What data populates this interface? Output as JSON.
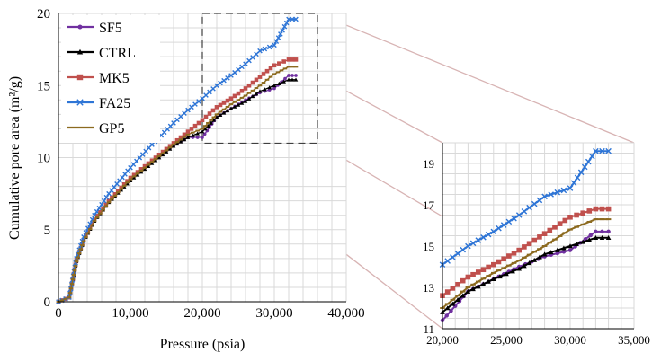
{
  "chart_data": [
    {
      "type": "line",
      "xlabel": "Pressure (psia)",
      "ylabel": "Cumulative pore area (m²/g)",
      "xlim": [
        0,
        40000
      ],
      "ylim": [
        0,
        20
      ],
      "x_ticks": [
        0,
        10000,
        20000,
        30000,
        40000
      ],
      "x_tick_labels": [
        "0",
        "10,000",
        "20,000",
        "30,000",
        "40,000"
      ],
      "y_ticks": [
        0,
        5,
        10,
        15,
        20
      ],
      "y_tick_labels": [
        "0",
        "5",
        "10",
        "15",
        "20"
      ],
      "grid": true,
      "legend_position": "top-left",
      "zoom_box": {
        "x": [
          20000,
          36000
        ],
        "y": [
          11,
          20
        ]
      },
      "series": [
        {
          "name": "SF5",
          "color": "#7030A0",
          "marker": "circle",
          "x": [
            0,
            1500,
            2500,
            3500,
            5000,
            7000,
            10000,
            13000,
            16000,
            18000,
            20000,
            22000,
            24000,
            26000,
            28000,
            30000,
            32000,
            33000
          ],
          "y": [
            0,
            0.3,
            2.8,
            4.2,
            5.6,
            6.9,
            8.5,
            9.7,
            10.8,
            11.4,
            11.4,
            12.8,
            13.4,
            14.0,
            14.5,
            14.8,
            15.7,
            15.7
          ]
        },
        {
          "name": "CTRL",
          "color": "#000000",
          "marker": "triangle",
          "x": [
            0,
            1500,
            2500,
            3500,
            5000,
            7000,
            10000,
            13000,
            16000,
            18000,
            20000,
            22000,
            24000,
            26000,
            28000,
            30000,
            32000,
            33000
          ],
          "y": [
            0,
            0.3,
            2.8,
            4.2,
            5.6,
            6.9,
            8.4,
            9.6,
            10.8,
            11.4,
            11.8,
            12.8,
            13.4,
            13.9,
            14.6,
            15.0,
            15.4,
            15.4
          ]
        },
        {
          "name": "MK5",
          "color": "#C0504D",
          "marker": "square",
          "x": [
            0,
            1500,
            2500,
            3500,
            5000,
            7000,
            10000,
            13000,
            16000,
            18000,
            20000,
            22000,
            24000,
            26000,
            28000,
            30000,
            32000,
            33000
          ],
          "y": [
            0,
            0.3,
            2.9,
            4.3,
            5.7,
            7.0,
            8.6,
            9.8,
            11.0,
            11.8,
            12.6,
            13.5,
            14.1,
            14.8,
            15.6,
            16.4,
            16.8,
            16.8
          ]
        },
        {
          "name": "FA25",
          "color": "#2E75D6",
          "marker": "x",
          "x": [
            0,
            1500,
            2500,
            3500,
            5000,
            7000,
            10000,
            13000,
            16000,
            18000,
            20000,
            22000,
            24000,
            26000,
            28000,
            30000,
            32000,
            33000
          ],
          "y": [
            0,
            0.3,
            3.0,
            4.5,
            6.0,
            7.5,
            9.3,
            10.9,
            12.4,
            13.3,
            14.1,
            15.0,
            15.7,
            16.5,
            17.4,
            17.8,
            19.6,
            19.6
          ]
        },
        {
          "name": "GP5",
          "color": "#8C6A1F",
          "marker": "dash",
          "x": [
            0,
            1500,
            2500,
            3500,
            5000,
            7000,
            10000,
            13000,
            16000,
            18000,
            20000,
            22000,
            24000,
            26000,
            28000,
            30000,
            32000,
            33000
          ],
          "y": [
            0,
            0.3,
            2.8,
            4.2,
            5.6,
            6.9,
            8.5,
            9.7,
            10.9,
            11.6,
            12.0,
            13.0,
            13.7,
            14.3,
            15.0,
            15.8,
            16.3,
            16.3
          ]
        }
      ]
    },
    {
      "type": "line",
      "xlabel": "",
      "ylabel": "",
      "xlim": [
        20000,
        35000
      ],
      "ylim": [
        11,
        20
      ],
      "x_ticks": [
        20000,
        25000,
        30000,
        35000
      ],
      "x_tick_labels": [
        "20,000",
        "25,000",
        "30,000",
        "35,000"
      ],
      "y_ticks": [
        11,
        13,
        15,
        17,
        19
      ],
      "y_tick_labels": [
        "11",
        "13",
        "15",
        "17",
        "19"
      ],
      "grid": true,
      "legend_position": "none",
      "series_ref": "chart_data.0.series"
    }
  ]
}
